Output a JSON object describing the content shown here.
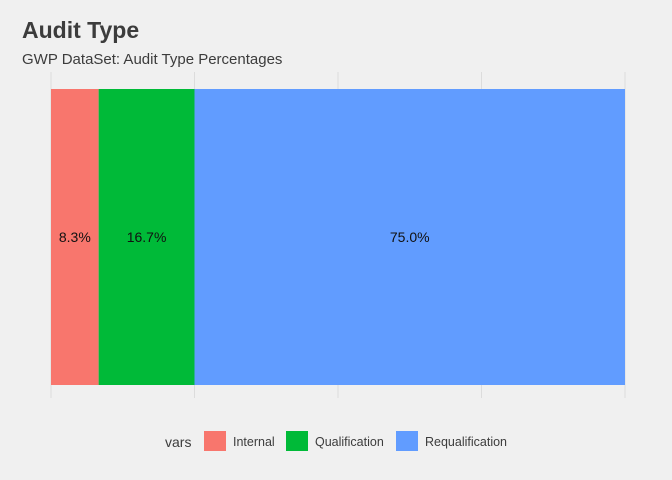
{
  "chart_data": {
    "type": "bar",
    "orientation": "horizontal",
    "stacked": true,
    "title": "Audit Type",
    "subtitle": "GWP DataSet: Audit Type Percentages",
    "xlabel": "",
    "ylabel": "",
    "xlim": [
      0,
      100
    ],
    "grid": true,
    "legend": {
      "title": "vars",
      "placement": "bottom"
    },
    "series": [
      {
        "name": "Internal",
        "value": 8.3,
        "label": "8.3%",
        "color": "#F8766D"
      },
      {
        "name": "Qualification",
        "value": 16.7,
        "label": "16.7%",
        "color": "#00BA38"
      },
      {
        "name": "Requalification",
        "value": 75.0,
        "label": "75.0%",
        "color": "#619CFF"
      }
    ]
  }
}
